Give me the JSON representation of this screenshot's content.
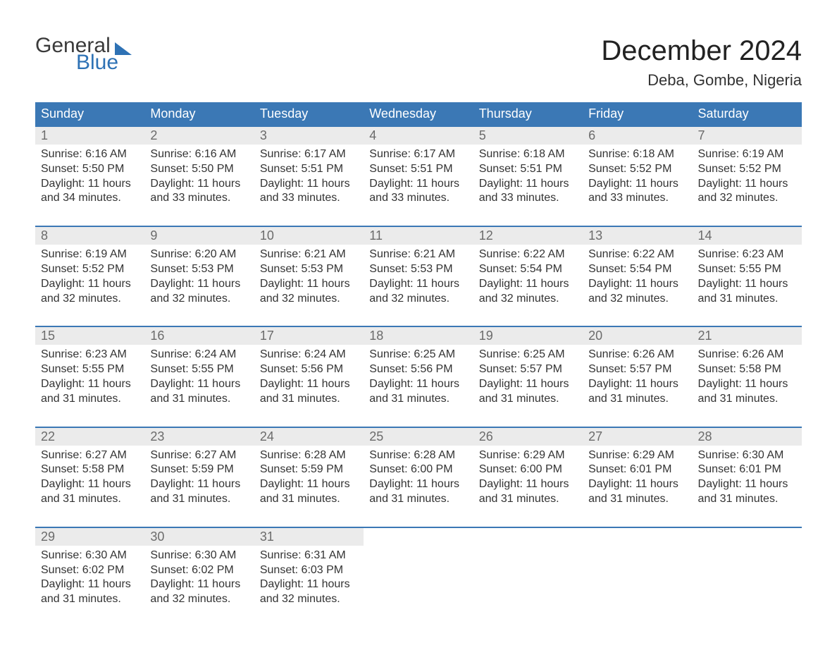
{
  "logo": {
    "word1": "General",
    "word2": "Blue"
  },
  "title": "December 2024",
  "location": "Deba, Gombe, Nigeria",
  "colors": {
    "header_bg": "#3b78b5",
    "header_text": "#ffffff",
    "daynum_bg": "#ebebeb",
    "daynum_text": "#6b6b6b",
    "border": "#3b78b5",
    "body_text": "#333333",
    "logo_blue": "#2e72b5"
  },
  "fonts": {
    "title_size_pt": 30,
    "location_size_pt": 16,
    "header_size_pt": 13,
    "body_size_pt": 12,
    "daynum_size_pt": 13
  },
  "day_headers": [
    "Sunday",
    "Monday",
    "Tuesday",
    "Wednesday",
    "Thursday",
    "Friday",
    "Saturday"
  ],
  "weeks": [
    [
      {
        "n": "1",
        "sunrise": "6:16 AM",
        "sunset": "5:50 PM",
        "daylight": "11 hours and 34 minutes."
      },
      {
        "n": "2",
        "sunrise": "6:16 AM",
        "sunset": "5:50 PM",
        "daylight": "11 hours and 33 minutes."
      },
      {
        "n": "3",
        "sunrise": "6:17 AM",
        "sunset": "5:51 PM",
        "daylight": "11 hours and 33 minutes."
      },
      {
        "n": "4",
        "sunrise": "6:17 AM",
        "sunset": "5:51 PM",
        "daylight": "11 hours and 33 minutes."
      },
      {
        "n": "5",
        "sunrise": "6:18 AM",
        "sunset": "5:51 PM",
        "daylight": "11 hours and 33 minutes."
      },
      {
        "n": "6",
        "sunrise": "6:18 AM",
        "sunset": "5:52 PM",
        "daylight": "11 hours and 33 minutes."
      },
      {
        "n": "7",
        "sunrise": "6:19 AM",
        "sunset": "5:52 PM",
        "daylight": "11 hours and 32 minutes."
      }
    ],
    [
      {
        "n": "8",
        "sunrise": "6:19 AM",
        "sunset": "5:52 PM",
        "daylight": "11 hours and 32 minutes."
      },
      {
        "n": "9",
        "sunrise": "6:20 AM",
        "sunset": "5:53 PM",
        "daylight": "11 hours and 32 minutes."
      },
      {
        "n": "10",
        "sunrise": "6:21 AM",
        "sunset": "5:53 PM",
        "daylight": "11 hours and 32 minutes."
      },
      {
        "n": "11",
        "sunrise": "6:21 AM",
        "sunset": "5:53 PM",
        "daylight": "11 hours and 32 minutes."
      },
      {
        "n": "12",
        "sunrise": "6:22 AM",
        "sunset": "5:54 PM",
        "daylight": "11 hours and 32 minutes."
      },
      {
        "n": "13",
        "sunrise": "6:22 AM",
        "sunset": "5:54 PM",
        "daylight": "11 hours and 32 minutes."
      },
      {
        "n": "14",
        "sunrise": "6:23 AM",
        "sunset": "5:55 PM",
        "daylight": "11 hours and 31 minutes."
      }
    ],
    [
      {
        "n": "15",
        "sunrise": "6:23 AM",
        "sunset": "5:55 PM",
        "daylight": "11 hours and 31 minutes."
      },
      {
        "n": "16",
        "sunrise": "6:24 AM",
        "sunset": "5:55 PM",
        "daylight": "11 hours and 31 minutes."
      },
      {
        "n": "17",
        "sunrise": "6:24 AM",
        "sunset": "5:56 PM",
        "daylight": "11 hours and 31 minutes."
      },
      {
        "n": "18",
        "sunrise": "6:25 AM",
        "sunset": "5:56 PM",
        "daylight": "11 hours and 31 minutes."
      },
      {
        "n": "19",
        "sunrise": "6:25 AM",
        "sunset": "5:57 PM",
        "daylight": "11 hours and 31 minutes."
      },
      {
        "n": "20",
        "sunrise": "6:26 AM",
        "sunset": "5:57 PM",
        "daylight": "11 hours and 31 minutes."
      },
      {
        "n": "21",
        "sunrise": "6:26 AM",
        "sunset": "5:58 PM",
        "daylight": "11 hours and 31 minutes."
      }
    ],
    [
      {
        "n": "22",
        "sunrise": "6:27 AM",
        "sunset": "5:58 PM",
        "daylight": "11 hours and 31 minutes."
      },
      {
        "n": "23",
        "sunrise": "6:27 AM",
        "sunset": "5:59 PM",
        "daylight": "11 hours and 31 minutes."
      },
      {
        "n": "24",
        "sunrise": "6:28 AM",
        "sunset": "5:59 PM",
        "daylight": "11 hours and 31 minutes."
      },
      {
        "n": "25",
        "sunrise": "6:28 AM",
        "sunset": "6:00 PM",
        "daylight": "11 hours and 31 minutes."
      },
      {
        "n": "26",
        "sunrise": "6:29 AM",
        "sunset": "6:00 PM",
        "daylight": "11 hours and 31 minutes."
      },
      {
        "n": "27",
        "sunrise": "6:29 AM",
        "sunset": "6:01 PM",
        "daylight": "11 hours and 31 minutes."
      },
      {
        "n": "28",
        "sunrise": "6:30 AM",
        "sunset": "6:01 PM",
        "daylight": "11 hours and 31 minutes."
      }
    ],
    [
      {
        "n": "29",
        "sunrise": "6:30 AM",
        "sunset": "6:02 PM",
        "daylight": "11 hours and 31 minutes."
      },
      {
        "n": "30",
        "sunrise": "6:30 AM",
        "sunset": "6:02 PM",
        "daylight": "11 hours and 32 minutes."
      },
      {
        "n": "31",
        "sunrise": "6:31 AM",
        "sunset": "6:03 PM",
        "daylight": "11 hours and 32 minutes."
      },
      null,
      null,
      null,
      null
    ]
  ],
  "labels": {
    "sunrise": "Sunrise: ",
    "sunset": "Sunset: ",
    "daylight": "Daylight: "
  }
}
